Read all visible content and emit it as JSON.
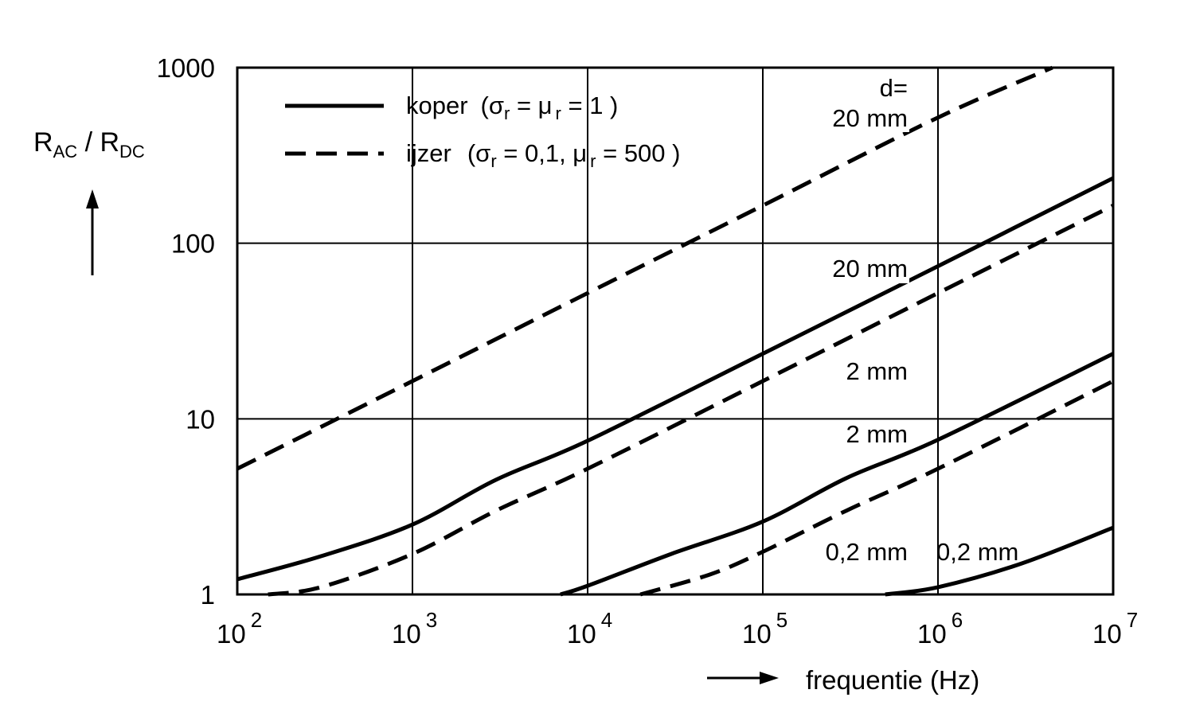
{
  "chart_data": {
    "type": "line",
    "title": "",
    "xlabel": "frequentie  (Hz)",
    "ylabel": {
      "main": "R",
      "sub1": "AC",
      "slash": " / R",
      "sub2": "DC"
    },
    "xscale": "log",
    "yscale": "log",
    "xlim": [
      100,
      10000000
    ],
    "ylim": [
      1,
      1000
    ],
    "grid": true,
    "legend_position": "top-left",
    "x_ticks": [
      {
        "value": 100,
        "base": "10",
        "exp": "2"
      },
      {
        "value": 1000,
        "base": "10",
        "exp": "3"
      },
      {
        "value": 10000,
        "base": "10",
        "exp": "4"
      },
      {
        "value": 100000,
        "base": "10",
        "exp": "5"
      },
      {
        "value": 1000000,
        "base": "10",
        "exp": "6"
      },
      {
        "value": 10000000,
        "base": "10",
        "exp": "7"
      }
    ],
    "y_ticks": [
      {
        "value": 1,
        "label": "1"
      },
      {
        "value": 10,
        "label": "10"
      },
      {
        "value": 100,
        "label": "100"
      },
      {
        "value": 1000,
        "label": "1000"
      }
    ],
    "legend": [
      {
        "style": "solid",
        "name": "koper",
        "sigma": "σ",
        "sigma_sub": "r",
        "mu_part": " = μ",
        "mu_sub": "r",
        "rest": " = 1 )",
        "open": "("
      },
      {
        "style": "dashed",
        "name": "ijzer",
        "sigma": "σ",
        "sigma_sub": "r",
        "mu_part": " = 0,1, μ",
        "mu_sub": "r",
        "rest": " = 500 )",
        "open": "("
      }
    ],
    "series": [
      {
        "style": "dashed",
        "label": "20 mm",
        "points": [
          [
            100,
            5.2
          ],
          [
            1000,
            16.4
          ],
          [
            10000,
            52
          ],
          [
            100000,
            164
          ],
          [
            1000000,
            520
          ],
          [
            4500000,
            1000
          ]
        ]
      },
      {
        "style": "solid",
        "label": "20 mm",
        "points": [
          [
            100,
            1.22
          ],
          [
            300,
            1.65
          ],
          [
            1000,
            2.5
          ],
          [
            3000,
            4.5
          ],
          [
            10000,
            7.5
          ],
          [
            100000,
            23.5
          ],
          [
            1000000,
            74
          ],
          [
            10000000,
            235
          ]
        ]
      },
      {
        "style": "dashed",
        "label": "2 mm",
        "points": [
          [
            150,
            1.0
          ],
          [
            300,
            1.1
          ],
          [
            1000,
            1.7
          ],
          [
            3000,
            3.0
          ],
          [
            10000,
            5.2
          ],
          [
            100000,
            16.4
          ],
          [
            1000000,
            52
          ],
          [
            10000000,
            164
          ]
        ]
      },
      {
        "style": "solid",
        "label": "2 mm",
        "points": [
          [
            7000,
            1.0
          ],
          [
            10000,
            1.12
          ],
          [
            30000,
            1.7
          ],
          [
            100000,
            2.6
          ],
          [
            300000,
            4.6
          ],
          [
            1000000,
            7.6
          ],
          [
            10000000,
            23.5
          ]
        ]
      },
      {
        "style": "dashed",
        "label": "0,2 mm",
        "points": [
          [
            20000,
            1.0
          ],
          [
            50000,
            1.3
          ],
          [
            100000,
            1.75
          ],
          [
            300000,
            3.0
          ],
          [
            1000000,
            5.2
          ],
          [
            10000000,
            16.4
          ]
        ]
      },
      {
        "style": "solid",
        "label": "0,2 mm",
        "points": [
          [
            500000,
            1.0
          ],
          [
            1000000,
            1.1
          ],
          [
            3000000,
            1.5
          ],
          [
            10000000,
            2.4
          ]
        ]
      }
    ],
    "annotations": [
      {
        "text": "d=",
        "x": 100000,
        "y": 1000,
        "note": "header above top label"
      },
      {
        "text": "20 mm"
      },
      {
        "text": "20 mm"
      },
      {
        "text": "2 mm"
      },
      {
        "text": "2 mm"
      },
      {
        "text": "0,2 mm"
      },
      {
        "text": "0,2 mm"
      }
    ]
  }
}
